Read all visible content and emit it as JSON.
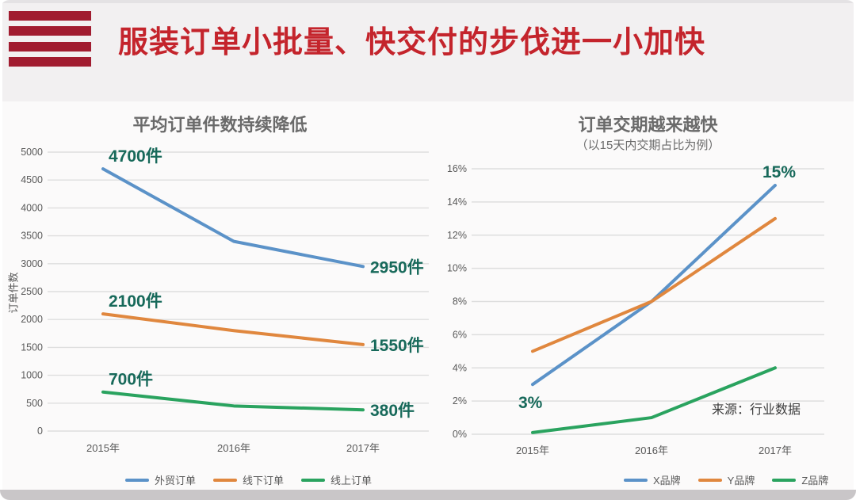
{
  "header": {
    "title": "服装订单小批量、快交付的步伐进一小加快"
  },
  "logo": {
    "name": "striped-flag-logo",
    "stripe_count": 4
  },
  "colors": {
    "title_red": "#c4242c",
    "logo_maroon": "#a11c30",
    "blue": "#5b92c8",
    "orange": "#e0873e",
    "green": "#2aa35f",
    "label_teal": "#17695a",
    "grid": "#dedede",
    "tick_text": "#595959"
  },
  "chart_data": [
    {
      "type": "line",
      "title": "平均订单件数持续降低",
      "ylabel": "订单件数",
      "categories": [
        "2015年",
        "2016年",
        "2017年"
      ],
      "ylim": [
        0,
        5000
      ],
      "ystep": 500,
      "ysuffix": "",
      "grid": true,
      "legend_position": "bottom",
      "series": [
        {
          "name": "外贸订单",
          "color_key": "blue",
          "values": [
            4700,
            3400,
            2950
          ],
          "point_labels": [
            {
              "index": 0,
              "text": "4700件",
              "position": "above"
            },
            {
              "index": 2,
              "text": "2950件",
              "position": "right"
            }
          ]
        },
        {
          "name": "线下订单",
          "color_key": "orange",
          "values": [
            2100,
            1800,
            1550
          ],
          "point_labels": [
            {
              "index": 0,
              "text": "2100件",
              "position": "above"
            },
            {
              "index": 2,
              "text": "1550件",
              "position": "right"
            }
          ]
        },
        {
          "name": "线上订单",
          "color_key": "green",
          "values": [
            700,
            450,
            380
          ],
          "point_labels": [
            {
              "index": 0,
              "text": "700件",
              "position": "above"
            },
            {
              "index": 2,
              "text": "380件",
              "position": "right"
            }
          ]
        }
      ]
    },
    {
      "type": "line",
      "title": "订单交期越来越快",
      "subtitle": "（以15天内交期占比为例）",
      "categories": [
        "2015年",
        "2016年",
        "2017年"
      ],
      "ylim": [
        0,
        16
      ],
      "ystep": 2,
      "ysuffix": "%",
      "grid": true,
      "legend_position": "bottom",
      "source": "来源：行业数据",
      "series": [
        {
          "name": "X品牌",
          "color_key": "blue",
          "values": [
            3,
            8,
            15
          ],
          "point_labels": [
            {
              "index": 0,
              "text": "3%",
              "position": "below-left"
            },
            {
              "index": 2,
              "text": "15%",
              "position": "above-left"
            }
          ]
        },
        {
          "name": "Y品牌",
          "color_key": "orange",
          "values": [
            5,
            8,
            13
          ],
          "point_labels": []
        },
        {
          "name": "Z品牌",
          "color_key": "green",
          "values": [
            0.1,
            1,
            4
          ],
          "point_labels": []
        }
      ]
    }
  ]
}
